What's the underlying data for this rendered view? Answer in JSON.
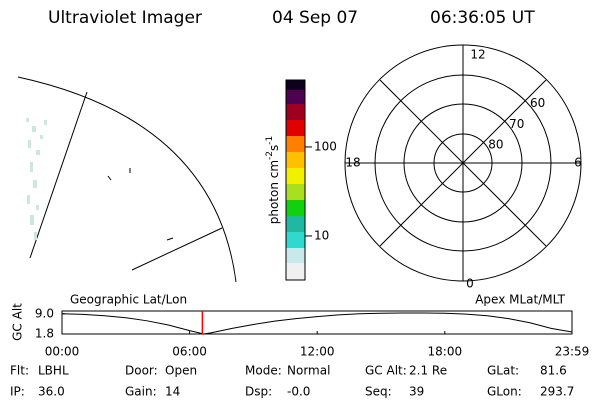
{
  "header": {
    "title": "Ultraviolet Imager",
    "date": "04 Sep 07",
    "time": "06:36:05 UT"
  },
  "colorbar": {
    "label": [
      "photon cm",
      "-2",
      "s",
      "-1"
    ],
    "ylim": [
      3.2,
      565
    ],
    "yticks": [
      10,
      100
    ],
    "log": true
  },
  "polar": {
    "mlt_labels": [
      12,
      18,
      6,
      0
    ],
    "lat_labels": [
      60,
      70,
      80
    ]
  },
  "orbit_plot": {
    "type": "line",
    "left_title": "Geographic Lat/Lon",
    "right_title": "Apex MLat/MLT",
    "ylabel": "GC Alt",
    "x": [
      0,
      1,
      2,
      3,
      4,
      5,
      6,
      6.67,
      7,
      8,
      9,
      10,
      11,
      12,
      13,
      14,
      15,
      16,
      17,
      18,
      19,
      20,
      21,
      22,
      23,
      23.98
    ],
    "values": [
      9.0,
      8.8,
      8.3,
      7.6,
      6.5,
      5.0,
      3.0,
      1.8,
      2.2,
      3.8,
      5.2,
      6.4,
      7.3,
      8.0,
      8.6,
      9.0,
      9.2,
      9.3,
      9.3,
      9.2,
      8.9,
      8.3,
      7.3,
      5.8,
      3.8,
      2.5
    ],
    "color": "#000000",
    "marker_x": 6.6,
    "marker_color": "#ff0000",
    "xlim": [
      0,
      23.98
    ],
    "ylim": [
      1.8,
      10.0
    ],
    "xticks": [
      {
        "value": 0,
        "label": "00:00"
      },
      {
        "value": 6,
        "label": "06:00"
      },
      {
        "value": 12,
        "label": "12:00"
      },
      {
        "value": 18,
        "label": "18:00"
      },
      {
        "value": 23.98,
        "label": "23:59"
      }
    ],
    "yticks": [
      {
        "value": 9,
        "label": "9.0"
      },
      {
        "value": 1.8,
        "label": "1.8"
      }
    ]
  },
  "footer": {
    "rows": [
      [
        [
          "Flt:",
          "LBHL"
        ],
        [
          "Door:",
          "Open"
        ],
        [
          "Mode:",
          "Normal"
        ],
        [
          "GC Alt:",
          "2.1 Re"
        ],
        [
          "GLat:",
          "81.6"
        ]
      ],
      [
        [
          "IP:",
          "36.0"
        ],
        [
          "Gain:",
          "14"
        ],
        [
          "Dsp:",
          "-0.0"
        ],
        [
          "Seq:",
          "39"
        ],
        [
          "GLon:",
          "293.7"
        ]
      ]
    ]
  }
}
